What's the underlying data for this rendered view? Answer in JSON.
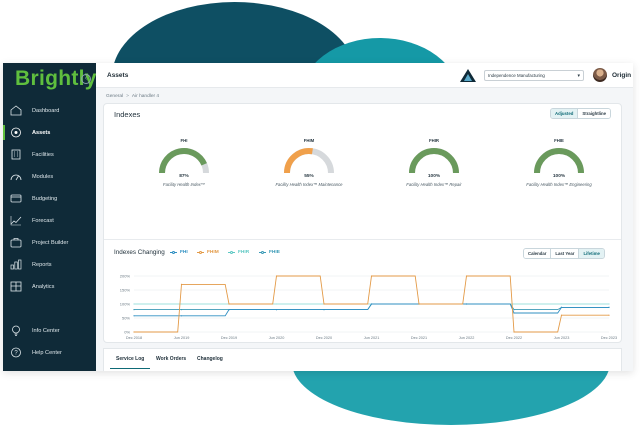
{
  "brand": {
    "logo_text": "Brightly"
  },
  "sidebar": {
    "items": [
      {
        "label": "Dashboard",
        "icon": "home-icon",
        "active": false
      },
      {
        "label": "Assets",
        "icon": "assets-icon",
        "active": true
      },
      {
        "label": "Facilities",
        "icon": "building-icon",
        "active": false
      },
      {
        "label": "Modules",
        "icon": "gauge-icon",
        "active": false
      },
      {
        "label": "Budgeting",
        "icon": "wallet-icon",
        "active": false
      },
      {
        "label": "Forecast",
        "icon": "trend-icon",
        "active": false
      },
      {
        "label": "Project Builder",
        "icon": "briefcase-icon",
        "active": false
      },
      {
        "label": "Reports",
        "icon": "bar-chart-icon",
        "active": false
      },
      {
        "label": "Analytics",
        "icon": "analytics-icon",
        "active": false
      },
      {
        "label": "Info Center",
        "icon": "lightbulb-icon",
        "active": false
      },
      {
        "label": "Help Center",
        "icon": "help-icon",
        "active": false
      }
    ]
  },
  "header": {
    "title": "Assets",
    "org_select": "Independence Manufacturing",
    "user_name": "Origin"
  },
  "breadcrumb": {
    "root": "General",
    "current": "Air handler 4"
  },
  "indexes": {
    "title": "Indexes",
    "toggle": [
      "Adjusted",
      "Straightline"
    ],
    "toggle_selected": "Adjusted",
    "gauges": [
      {
        "code": "FHI",
        "value": "87%",
        "fraction": 0.87,
        "desc": "Facility Health Index™",
        "color": "#6a9a5c"
      },
      {
        "code": "FHIM",
        "value": "55%",
        "fraction": 0.55,
        "desc": "Facility Health Index™ Maintenance",
        "color": "#f0a04b"
      },
      {
        "code": "FHIR",
        "value": "100%",
        "fraction": 1.0,
        "desc": "Facility Health Index™ Repair",
        "color": "#6a9a5c"
      },
      {
        "code": "FHIE",
        "value": "100%",
        "fraction": 1.0,
        "desc": "Facility Health Index™ Engineering",
        "color": "#6a9a5c"
      }
    ]
  },
  "changing": {
    "title": "Indexes Changing",
    "range_buttons": [
      "Calendar",
      "Last Year",
      "Lifetime"
    ],
    "range_selected": "Lifetime"
  },
  "chart_data": {
    "type": "line",
    "x": [
      "Dec 2018",
      "Jun 2019",
      "Dec 2019",
      "Jun 2020",
      "Dec 2020",
      "Jun 2021",
      "Dec 2021",
      "Jun 2022",
      "Dec 2022",
      "Jun 2023",
      "Dec 2023"
    ],
    "ylabels": [
      "0%",
      "50%",
      "100%",
      "150%",
      "200%"
    ],
    "ylim": [
      0,
      200
    ],
    "grid": true,
    "series": [
      {
        "name": "FHI",
        "color": "#2f8fc2",
        "values": [
          58,
          58,
          80,
          80,
          80,
          100,
          100,
          100,
          68,
          88,
          88
        ]
      },
      {
        "name": "FHIM",
        "color": "#e39a47",
        "values": [
          0,
          170,
          100,
          200,
          100,
          200,
          100,
          200,
          0,
          60,
          60
        ]
      },
      {
        "name": "FHIR",
        "color": "#9fe0de",
        "values": [
          100,
          100,
          100,
          100,
          100,
          100,
          100,
          100,
          100,
          100,
          100
        ]
      },
      {
        "name": "FHIE",
        "color": "#3a9ab6",
        "values": [
          80,
          80,
          80,
          80,
          80,
          100,
          100,
          100,
          80,
          88,
          88
        ]
      }
    ]
  },
  "tabs": [
    {
      "label": "Service Log",
      "active": true
    },
    {
      "label": "Work Orders",
      "active": false
    },
    {
      "label": "Changelog",
      "active": false
    }
  ],
  "colors": {
    "sidebar_bg": "#0f2a38",
    "brand_green": "#5fbf3e",
    "accent_teal": "#0e6a76"
  }
}
